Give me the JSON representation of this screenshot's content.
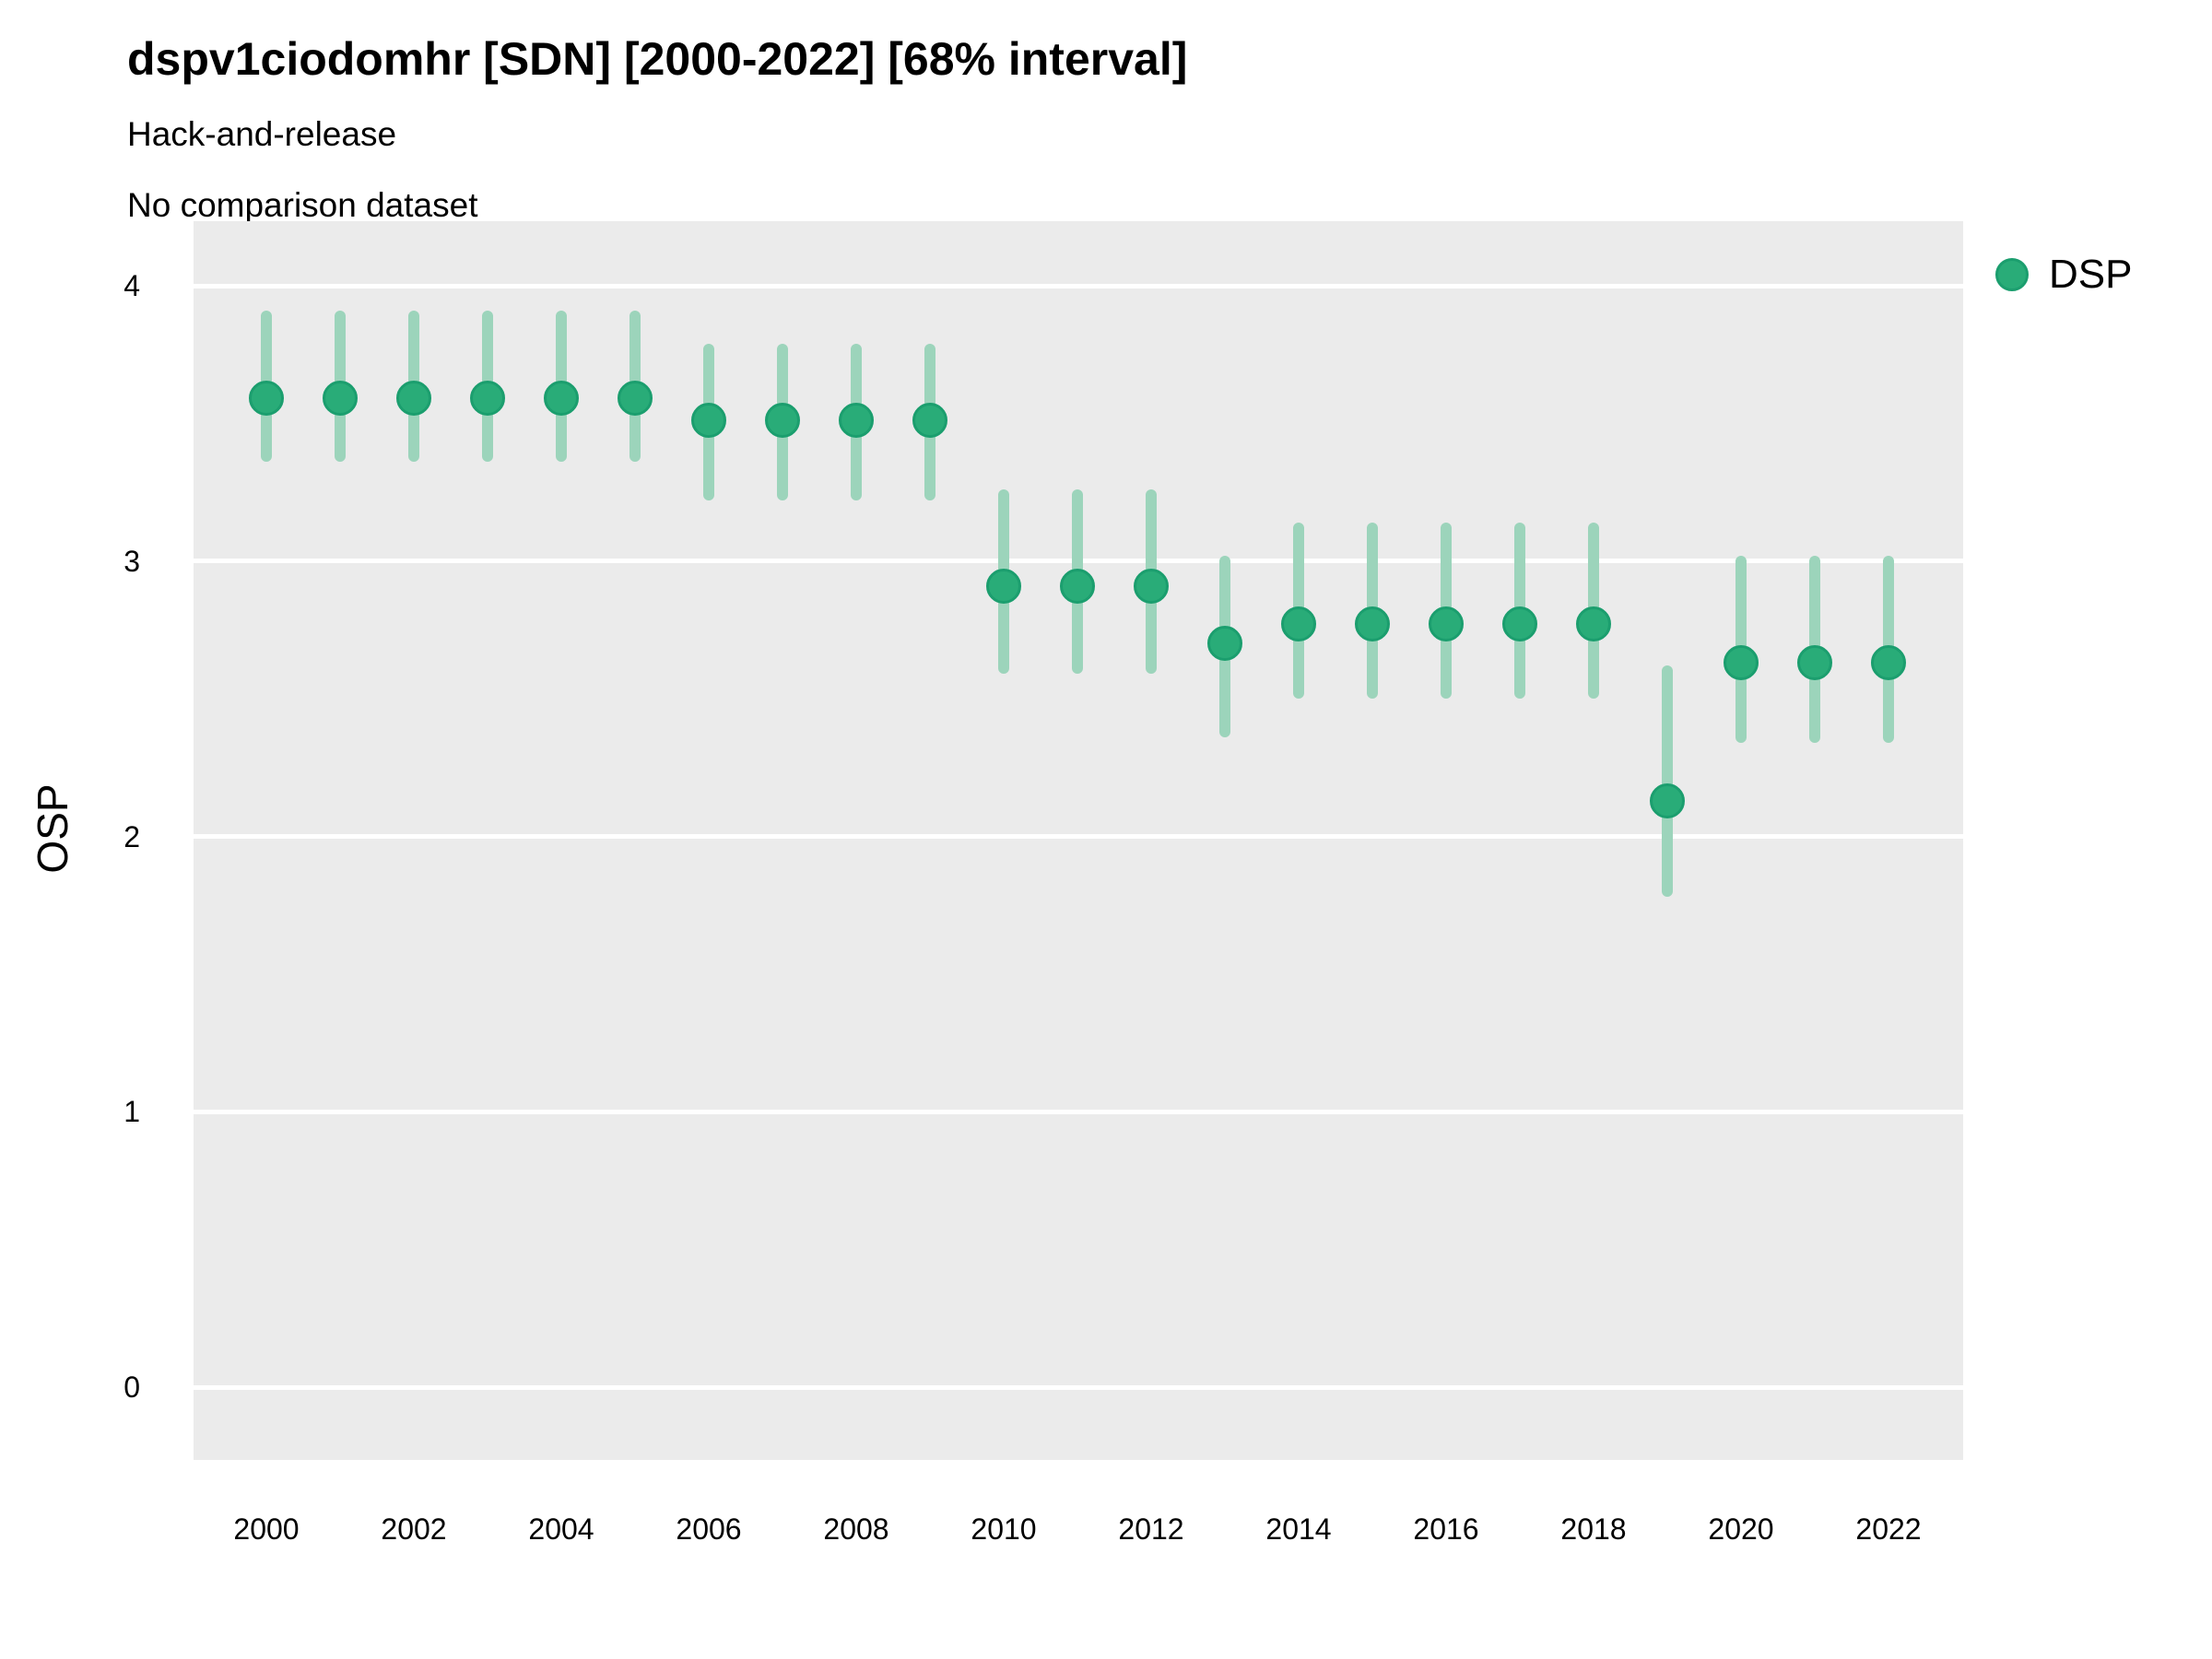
{
  "header": {
    "title": "dspv1ciodomhr [SDN] [2000-2022] [68% interval]",
    "subtitle1": "Hack-and-release",
    "subtitle2": "No comparison dataset"
  },
  "legend": {
    "position": "right",
    "items": [
      {
        "label": "DSP"
      }
    ]
  },
  "colors": {
    "point_fill": "#29AC78",
    "point_stroke": "#1B9E6E",
    "interval_bar": "#9CD4BB",
    "panel_bg": "#EBEBEB",
    "gridline": "#FFFFFF",
    "text": "#000000"
  },
  "chart_data": {
    "type": "scatter",
    "title": "dspv1ciodomhr [SDN] [2000-2022] [68% interval]",
    "subtitle": [
      "Hack-and-release",
      "No comparison dataset"
    ],
    "xlabel": "",
    "ylabel": "OSP",
    "interval_level": "68%",
    "grid": "horizontal-major-only",
    "legend_position": "right",
    "ylim": [
      -0.27,
      4.23
    ],
    "y_ticks": [
      0,
      1,
      2,
      3,
      4
    ],
    "x_ticks": [
      2000,
      2002,
      2004,
      2006,
      2008,
      2010,
      2012,
      2014,
      2016,
      2018,
      2020,
      2022
    ],
    "series": [
      {
        "name": "DSP",
        "x": [
          2000,
          2001,
          2002,
          2003,
          2004,
          2005,
          2006,
          2007,
          2008,
          2009,
          2010,
          2011,
          2012,
          2013,
          2014,
          2015,
          2016,
          2017,
          2018,
          2019,
          2020,
          2021,
          2022
        ],
        "mid": [
          3.59,
          3.59,
          3.59,
          3.59,
          3.59,
          3.59,
          3.51,
          3.51,
          3.51,
          3.51,
          2.91,
          2.91,
          2.91,
          2.7,
          2.77,
          2.77,
          2.77,
          2.77,
          2.77,
          2.13,
          2.63,
          2.63,
          2.63
        ],
        "lo": [
          3.36,
          3.36,
          3.36,
          3.36,
          3.36,
          3.36,
          3.22,
          3.22,
          3.22,
          3.22,
          2.59,
          2.59,
          2.59,
          2.36,
          2.5,
          2.5,
          2.5,
          2.5,
          2.5,
          1.78,
          2.34,
          2.34,
          2.34
        ],
        "hi": [
          3.91,
          3.91,
          3.91,
          3.91,
          3.91,
          3.91,
          3.79,
          3.79,
          3.79,
          3.79,
          3.26,
          3.26,
          3.26,
          3.02,
          3.14,
          3.14,
          3.14,
          3.14,
          3.14,
          2.62,
          3.02,
          3.02,
          3.02
        ]
      }
    ]
  }
}
